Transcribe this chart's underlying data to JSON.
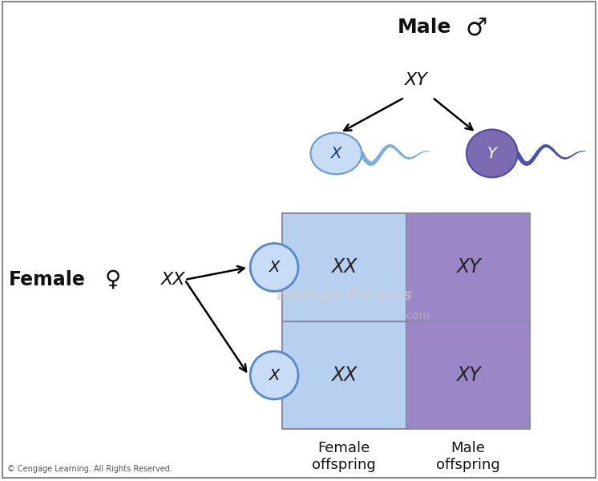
{
  "bg_color": "#ffffff",
  "grid_color": "#8888aa",
  "light_blue_cell": "#b8d0ef",
  "light_purple_cell": "#9b87c5",
  "sperm_x_body": "#c8ddf5",
  "sperm_x_outline": "#6699cc",
  "sperm_x_tail": "#7ab0e0",
  "sperm_y_body": "#7b6bb0",
  "sperm_y_outline": "#5544aa",
  "sperm_y_tail": "#4455aa",
  "egg_fill": "#c8ddf5",
  "egg_outline": "#5588cc",
  "text_dark": "#111111",
  "text_cell": "#222222",
  "watermark_color": "#cccccc",
  "copyright_color": "#555555",
  "title_male": "Male",
  "title_female": "Female",
  "male_symbol": "♂",
  "female_symbol": "♀",
  "xy_label": "XY",
  "xx_label": "XX",
  "female_offspring": "Female\noffspring",
  "male_offspring": "Male\noffspring",
  "copyright": "© Cengage Learning. All Rights Reserved.",
  "watermark": "Biology-Forums"
}
